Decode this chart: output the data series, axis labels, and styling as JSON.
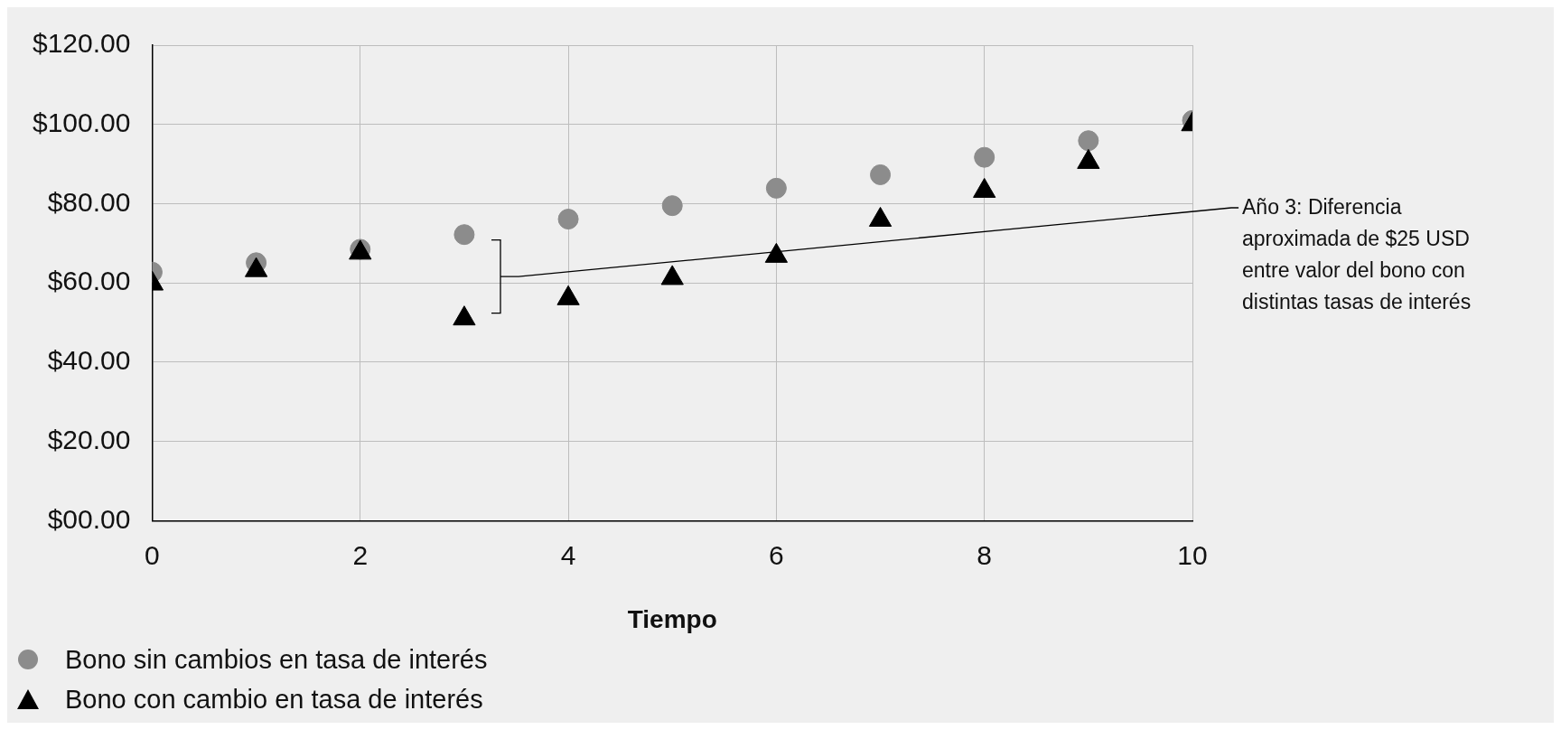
{
  "chart_data": {
    "type": "scatter",
    "xlabel": "Tiempo",
    "xlim": [
      0,
      10
    ],
    "xticks": [
      0,
      2,
      4,
      6,
      8,
      10
    ],
    "ylim": [
      0,
      120
    ],
    "yticks": [
      {
        "value": 0,
        "label": "$00.00"
      },
      {
        "value": 20,
        "label": "$20.00"
      },
      {
        "value": 40,
        "label": "$40.00"
      },
      {
        "value": 60,
        "label": "$60.00"
      },
      {
        "value": 80,
        "label": "$80.00"
      },
      {
        "value": 100,
        "label": "$100.00"
      },
      {
        "value": 120,
        "label": "$120.00"
      }
    ],
    "grid": true,
    "legend": "bottom left",
    "series": [
      {
        "name": "Bono sin cambios en tasa de interés",
        "color": "#8c8c8c",
        "marker": "circle",
        "x": [
          0,
          1,
          2,
          3,
          4,
          5,
          6,
          7,
          8,
          9,
          10
        ],
        "values": [
          62.7,
          65.1,
          68.5,
          72.2,
          76.1,
          79.5,
          83.9,
          87.3,
          91.7,
          95.9,
          101
        ]
      },
      {
        "name": "Bono con cambio en tasa de interés",
        "color": "#000000",
        "marker": "triangle",
        "x": [
          0,
          1,
          2,
          3,
          4,
          5,
          6,
          7,
          8,
          9,
          10
        ],
        "values": [
          59.8,
          63.2,
          67.6,
          51,
          56.1,
          61.2,
          66.8,
          75.9,
          83.2,
          90.5,
          100
        ]
      }
    ],
    "annotations": [
      "Año 3: Diferencia aproximada de $25 USD entre valor del bono con distintas tasas de interés"
    ]
  }
}
